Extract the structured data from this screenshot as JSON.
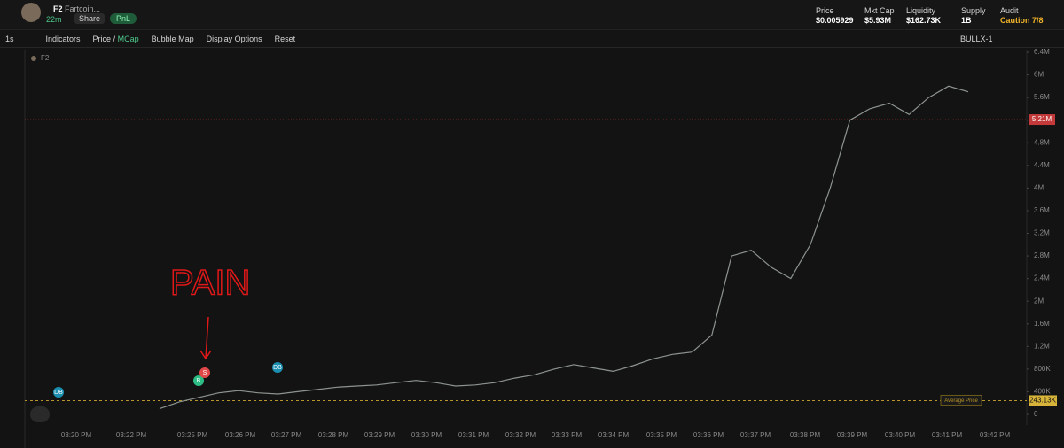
{
  "header": {
    "symbol": "F2",
    "name": "Fartcoin...",
    "age": "22m",
    "share": "Share",
    "pnl": "PnL",
    "stats": [
      {
        "label": "Price",
        "value": "$0.005929"
      },
      {
        "label": "Mkt Cap",
        "value": "$5.93M"
      },
      {
        "label": "Liquidity",
        "value": "$162.73K"
      },
      {
        "label": "Supply",
        "value": "1B"
      },
      {
        "label": "Audit",
        "value": "Caution 7/8"
      }
    ]
  },
  "toolbar": {
    "interval": "1s",
    "indicators": "Indicators",
    "price": "Price",
    "mcap": "MCap",
    "bubble_map": "Bubble Map",
    "display_options": "Display Options",
    "reset": "Reset",
    "layout": "BULLX-1"
  },
  "chart": {
    "type": "line",
    "legend": "F2",
    "color": "#8d948f",
    "ylim": [
      0,
      6400000
    ],
    "yticks": [
      0,
      {
        "value": 400000,
        "label": "400K"
      },
      {
        "value": 800000,
        "label": "800K"
      },
      {
        "value": 1200000,
        "label": "1.2M"
      },
      {
        "value": 1600000,
        "label": "1.6M"
      },
      {
        "value": 2000000,
        "label": "2M"
      },
      {
        "value": 2400000,
        "label": "2.4M"
      },
      {
        "value": 2800000,
        "label": "2.8M"
      },
      {
        "value": 3200000,
        "label": "3.2M"
      },
      {
        "value": 3600000,
        "label": "3.6M"
      },
      {
        "value": 4000000,
        "label": "4M"
      },
      {
        "value": 4400000,
        "label": "4.4M"
      },
      {
        "value": 4800000,
        "label": "4.8M"
      },
      {
        "value": 5200000,
        "label": "5.2M"
      },
      {
        "value": 5600000,
        "label": "5.6M"
      },
      {
        "value": 6000000,
        "label": "6M"
      },
      {
        "value": 6400000,
        "label": "6.4M"
      }
    ],
    "x_labels": [
      "03:20 PM",
      "03:22 PM",
      "03:25 PM",
      "03:26 PM",
      "03:27 PM",
      "03:28 PM",
      "03:29 PM",
      "03:30 PM",
      "03:31 PM",
      "03:32 PM",
      "03:33 PM",
      "03:34 PM",
      "03:35 PM",
      "03:36 PM",
      "03:37 PM",
      "03:38 PM",
      "03:39 PM",
      "03:40 PM",
      "03:41 PM",
      "03:42 PM"
    ],
    "values": [
      100000,
      220000,
      300000,
      380000,
      420000,
      380000,
      360000,
      400000,
      440000,
      480000,
      500000,
      520000,
      560000,
      600000,
      560000,
      500000,
      520000,
      560000,
      640000,
      700000,
      800000,
      880000,
      820000,
      760000,
      860000,
      980000,
      1060000,
      1100000,
      1400000,
      2800000,
      2900000,
      2600000,
      2400000,
      3000000,
      4000000,
      5200000,
      5400000,
      5500000,
      5300000,
      5600000,
      5800000,
      5700000
    ],
    "current_price": {
      "value": 5210000,
      "label": "5.21M"
    },
    "average_price": {
      "value": 243130,
      "label": "243.13K",
      "name": "Average Price"
    },
    "trade_markers": [
      "DB",
      "B",
      "S",
      "DB"
    ],
    "annotation": "PAIN"
  }
}
